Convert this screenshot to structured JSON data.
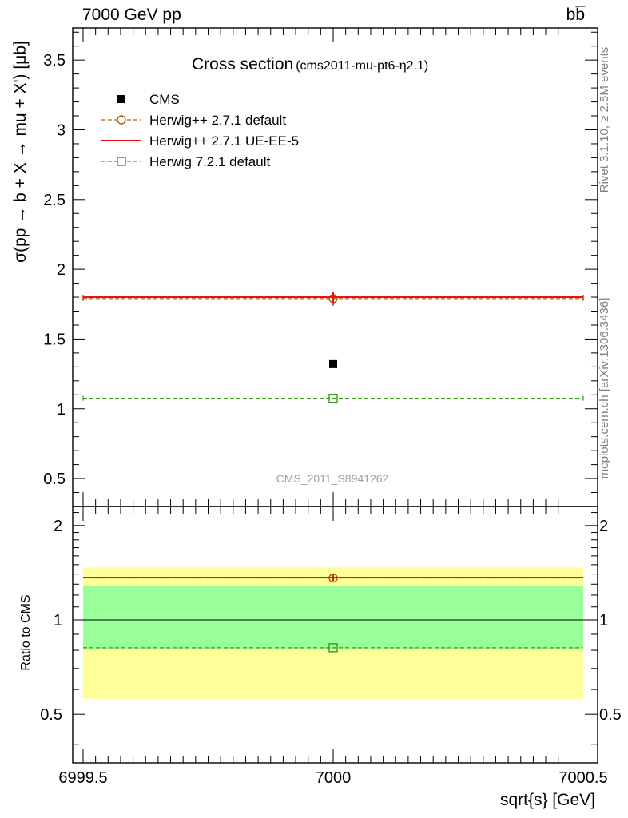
{
  "header": {
    "left": "7000 GeV pp",
    "right": "bb̅"
  },
  "side": {
    "rivet": "Rivet 3.1.10, ≥ 2.5M events",
    "source": "mcplots.cern.ch [arXiv:1306.3436]"
  },
  "chart_data": [
    {
      "type": "scatter",
      "title": "Cross section",
      "subtitle": "(cms2011-mu-pt6-η2.1)",
      "watermark": "CMS_2011_S8941262",
      "ylabel": "σ(pp → b + X → mu + X') [μb]",
      "xlim": [
        6999.5,
        7000.5
      ],
      "ylim": [
        0.3,
        3.73
      ],
      "yticks": [
        "0.5",
        "1",
        "1.5",
        "2",
        "2.5",
        "3",
        "3.5"
      ],
      "ytick_values": [
        0.5,
        1,
        1.5,
        2,
        2.5,
        3,
        3.5
      ],
      "legend_position": "top-left",
      "series": [
        {
          "name": "CMS",
          "color": "#000000",
          "marker": "filled-square",
          "style": "none",
          "x": [
            7000
          ],
          "y": [
            1.32
          ],
          "err": 0.0
        },
        {
          "name": "Herwig++ 2.7.1 default",
          "color": "#b35a00",
          "marker": "open-circle",
          "style": "dashed",
          "x": [
            7000
          ],
          "y": [
            1.79
          ],
          "err": 0.05
        },
        {
          "name": "Herwig++ 2.7.1 UE-EE-5",
          "color": "#ee1111",
          "marker": "none",
          "style": "solid",
          "x": [
            7000
          ],
          "y": [
            1.8
          ],
          "err": 0.04
        },
        {
          "name": "Herwig 7.2.1 default",
          "color": "#3a9a1a",
          "marker": "open-square",
          "style": "dashed",
          "x": [
            7000
          ],
          "y": [
            1.075
          ],
          "err": 0.0
        }
      ]
    },
    {
      "type": "scatter",
      "ylabel": "Ratio to CMS",
      "xlabel": "sqrt{s} [GeV]",
      "xlim": [
        6999.5,
        7000.5
      ],
      "xticks": [
        "6999.5",
        "7000",
        "7000.5"
      ],
      "xtick_values": [
        6999.5,
        7000,
        7000.5
      ],
      "ylim": [
        0.35,
        2.3
      ],
      "yticks": [
        "0.5",
        "1",
        "2"
      ],
      "ytick_values": [
        0.5,
        1,
        2
      ],
      "bands": [
        {
          "name": "total-uncertainty",
          "color": "#ffff99",
          "low": 0.56,
          "high": 1.47
        },
        {
          "name": "stat-uncertainty",
          "color": "#99ff99",
          "low": 0.81,
          "high": 1.28
        }
      ],
      "series": [
        {
          "name": "Herwig++ 2.7.1 default",
          "color": "#b35a00",
          "style": "dashed",
          "marker": "open-circle",
          "x": [
            7000
          ],
          "y": [
            1.36
          ],
          "err": 0.03
        },
        {
          "name": "Herwig++ 2.7.1 UE-EE-5",
          "color": "#ee1111",
          "style": "solid",
          "marker": "none",
          "x": [
            7000
          ],
          "y": [
            1.365
          ],
          "err": 0.03
        },
        {
          "name": "Herwig 7.2.1 default",
          "color": "#3a9a1a",
          "style": "dashed",
          "marker": "open-square",
          "x": [
            7000
          ],
          "y": [
            0.815
          ],
          "err": 0.0
        }
      ]
    }
  ]
}
